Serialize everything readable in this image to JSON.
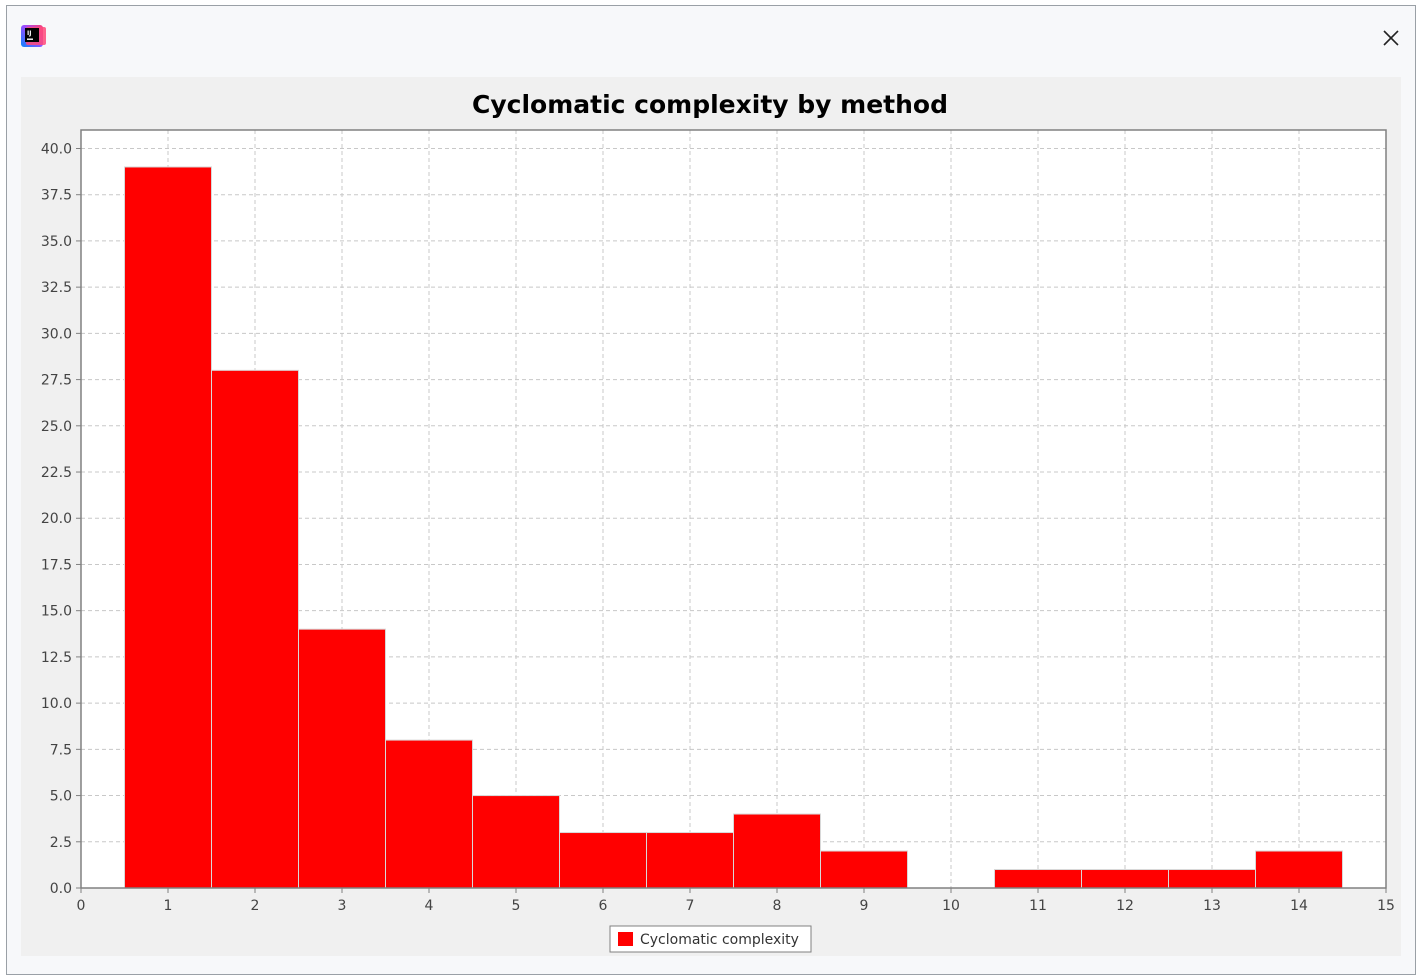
{
  "window": {
    "icon_name": "intellij-app-icon",
    "close_icon_name": "close-icon"
  },
  "chart_data": {
    "type": "bar",
    "title": "Cyclomatic complexity by method",
    "xlabel": "",
    "ylabel": "",
    "x": [
      1,
      2,
      3,
      4,
      5,
      6,
      7,
      8,
      9,
      10,
      11,
      12,
      13,
      14
    ],
    "series": [
      {
        "name": "Cyclomatic complexity",
        "color": "#ff0000",
        "values": [
          39,
          28,
          14,
          8,
          5,
          3,
          3,
          4,
          2,
          0,
          1,
          1,
          1,
          2
        ]
      }
    ],
    "xlim": [
      0,
      15
    ],
    "ylim": [
      0,
      41
    ],
    "x_ticks": [
      "0",
      "1",
      "2",
      "3",
      "4",
      "5",
      "6",
      "7",
      "8",
      "9",
      "10",
      "11",
      "12",
      "13",
      "14",
      "15"
    ],
    "y_ticks": [
      "0.0",
      "2.5",
      "5.0",
      "7.5",
      "10.0",
      "12.5",
      "15.0",
      "17.5",
      "20.0",
      "22.5",
      "25.0",
      "27.5",
      "30.0",
      "32.5",
      "35.0",
      "37.5",
      "40.0"
    ],
    "grid": true,
    "legend": "bottom-center"
  }
}
